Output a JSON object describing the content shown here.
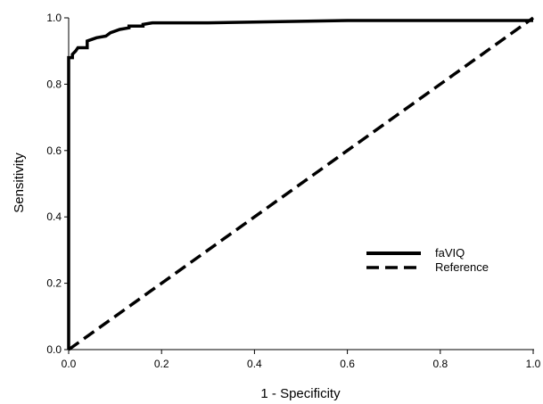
{
  "chart_data": {
    "type": "line",
    "title": "",
    "xlabel": "1 - Specificity",
    "ylabel": "Sensitivity",
    "xlim": [
      0,
      1
    ],
    "ylim": [
      0,
      1
    ],
    "xticks": [
      0,
      0.2,
      0.4,
      0.6,
      0.8,
      1
    ],
    "yticks": [
      0,
      0.2,
      0.4,
      0.6,
      0.8,
      1
    ],
    "xtick_labels": [
      "0.0",
      "0.2",
      "0.4",
      "0.6",
      "0.8",
      "1.0"
    ],
    "ytick_labels": [
      "0.0",
      "0.2",
      "0.4",
      "0.6",
      "0.8",
      "1.0"
    ],
    "grid": false,
    "legend": "right",
    "series": [
      {
        "name": "faVIQ",
        "style": "solid",
        "color": "#000000",
        "x": [
          0,
          0,
          0.008,
          0.008,
          0.015,
          0.02,
          0.04,
          0.04,
          0.05,
          0.06,
          0.08,
          0.09,
          0.11,
          0.13,
          0.13,
          0.16,
          0.16,
          0.18,
          0.3,
          0.6,
          1.0
        ],
        "y": [
          0,
          0.88,
          0.88,
          0.89,
          0.9,
          0.91,
          0.91,
          0.93,
          0.935,
          0.94,
          0.945,
          0.955,
          0.965,
          0.97,
          0.975,
          0.975,
          0.98,
          0.985,
          0.985,
          0.992,
          0.992
        ]
      },
      {
        "name": "Reference",
        "style": "dashed",
        "color": "#000000",
        "x": [
          0,
          1
        ],
        "y": [
          0,
          1
        ]
      }
    ]
  }
}
